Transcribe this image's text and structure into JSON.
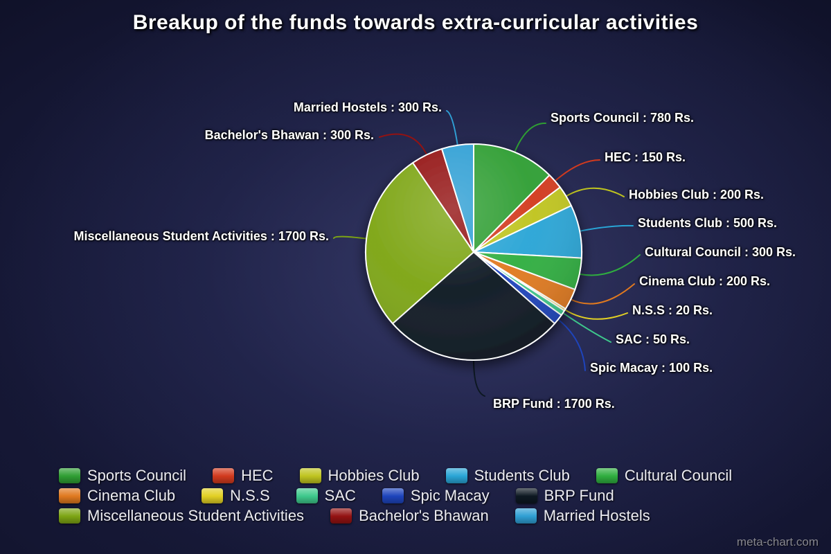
{
  "title": "Breakup of the funds towards extra-curricular activities",
  "watermark": "meta-chart.com",
  "chart_data": {
    "type": "pie",
    "title": "Breakup of the funds towards extra-curricular activities",
    "unit": "Rs.",
    "total": 6300,
    "start_angle_deg": 0,
    "direction": "clockwise",
    "legend_position": "bottom",
    "slices": [
      {
        "label": "Sports Council",
        "value": 780,
        "color": "#2f9e33",
        "callout": "Sports Council : 780 Rs."
      },
      {
        "label": "HEC",
        "value": 150,
        "color": "#d23a1e",
        "callout": "HEC : 150 Rs."
      },
      {
        "label": "Hobbies Club",
        "value": 200,
        "color": "#bfc41f",
        "callout": "Hobbies Club : 200 Rs."
      },
      {
        "label": "Students Club",
        "value": 500,
        "color": "#29a5d6",
        "callout": "Students Club : 500 Rs."
      },
      {
        "label": "Cultural Council",
        "value": 300,
        "color": "#2fae3f",
        "callout": "Cultural Council : 300 Rs."
      },
      {
        "label": "Cinema Club",
        "value": 200,
        "color": "#e0791f",
        "callout": "Cinema Club : 200 Rs."
      },
      {
        "label": "N.S.S",
        "value": 20,
        "color": "#e2d024",
        "callout": "N.S.S : 20 Rs."
      },
      {
        "label": "SAC",
        "value": 50,
        "color": "#3ec98c",
        "callout": "SAC : 50 Rs."
      },
      {
        "label": "Spic Macay",
        "value": 100,
        "color": "#1e44bc",
        "callout": "Spic Macay : 100 Rs."
      },
      {
        "label": "BRP Fund",
        "value": 1700,
        "color": "#0d1822",
        "callout": "BRP Fund : 1700 Rs."
      },
      {
        "label": "Miscellaneous Student Activities",
        "value": 1700,
        "color": "#7da514",
        "callout": "Miscellaneous Student Activities : 1700 Rs."
      },
      {
        "label": "Bachelor's Bhawan",
        "value": 300,
        "color": "#931212",
        "callout": "Bachelor's Bhawan : 300 Rs."
      },
      {
        "label": "Married Hostels",
        "value": 300,
        "color": "#2f9fd4",
        "callout": "Married Hostels : 300 Rs."
      }
    ]
  }
}
